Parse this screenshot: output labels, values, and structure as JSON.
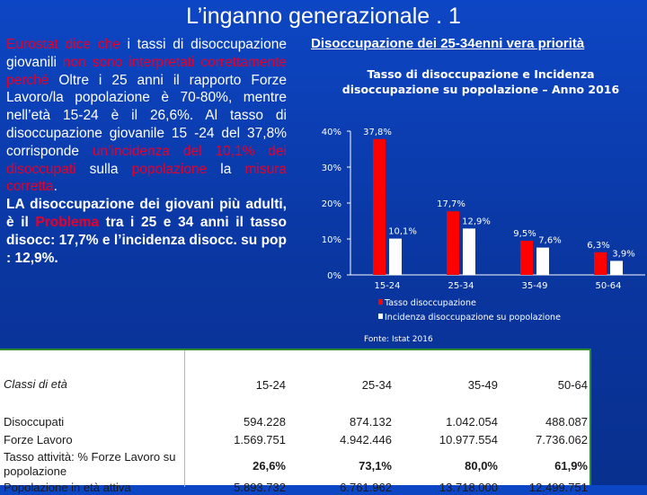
{
  "slide": {
    "title": "L’inganno generazionale . 1",
    "right_heading": "Disoccupazione dei 25-34enni vera priorità"
  },
  "left_text": {
    "seg1": "Eurostat dice che",
    "seg2": " i tassi di disoccupazione giovanili ",
    "seg3": "non sono interpretati correttamente perché",
    "seg4": " Oltre i 25 anni il rapporto Forze Lavoro/la popolazione è 70-80%, mentre nell’età 15-24 è il 26,6%. Al tasso di disoccupazione giovanile 15 -24 del 37,8% corrisponde ",
    "seg5": "un’incidenza del 10,1% dei disoccupati",
    "seg6": " sulla ",
    "seg7": "popolazione",
    "seg8": " la ",
    "seg9": "misura corretta",
    "seg10": ".",
    "seg11": "LA disoccupazione dei giovani più adulti, è il ",
    "seg12": "Problema",
    "seg13": " tra i 25 e 34 anni il tasso disocc: 17,7% e l’incidenza disocc. su pop : 12,9%."
  },
  "chart_data": {
    "type": "bar",
    "title": "Tasso di disoccupazione e Incidenza disoccupazione su popolazione – Anno 2016",
    "categories": [
      "15-24",
      "25-34",
      "35-49",
      "50-64"
    ],
    "series": [
      {
        "name": "Tasso disoccupazione",
        "values": [
          37.8,
          17.7,
          9.5,
          6.3
        ],
        "labels": [
          "37,8%",
          "17,7%",
          "9,5%",
          "6,3%"
        ],
        "color": "#ff0000"
      },
      {
        "name": "Incidenza disoccupazione su popolazione",
        "values": [
          10.1,
          12.9,
          7.6,
          3.9
        ],
        "labels": [
          "10,1%",
          "12,9%",
          "7,6%",
          "3,9%"
        ],
        "color": "#ffffff"
      }
    ],
    "yticks": [
      "0%",
      "10%",
      "20%",
      "30%",
      "40%"
    ],
    "ylim": [
      0,
      40
    ],
    "legend": "bottom",
    "source": "Fonte: Istat 2016"
  },
  "table": {
    "header": {
      "label": "Classi di età",
      "cols": [
        "15-24",
        "25-34",
        "35-49",
        "50-64"
      ]
    },
    "rows": [
      {
        "label": "Disoccupati",
        "values": [
          "594.228",
          "874.132",
          "1.042.054",
          "488.087"
        ],
        "style": ""
      },
      {
        "label": "Forze Lavoro",
        "values": [
          "1.569.751",
          "4.942.446",
          "10.977.554",
          "7.736.062"
        ],
        "style": ""
      },
      {
        "label": "Tasso attività: % Forze Lavoro su popolazione",
        "values": [
          "26,6%",
          "73,1%",
          "80,0%",
          "61,9%"
        ],
        "style": "bold"
      },
      {
        "label": "Popolazione in età attiva",
        "values": [
          "5.893.732",
          "6.761.962",
          "13.718.000",
          "12.499.751"
        ],
        "style": ""
      }
    ]
  }
}
